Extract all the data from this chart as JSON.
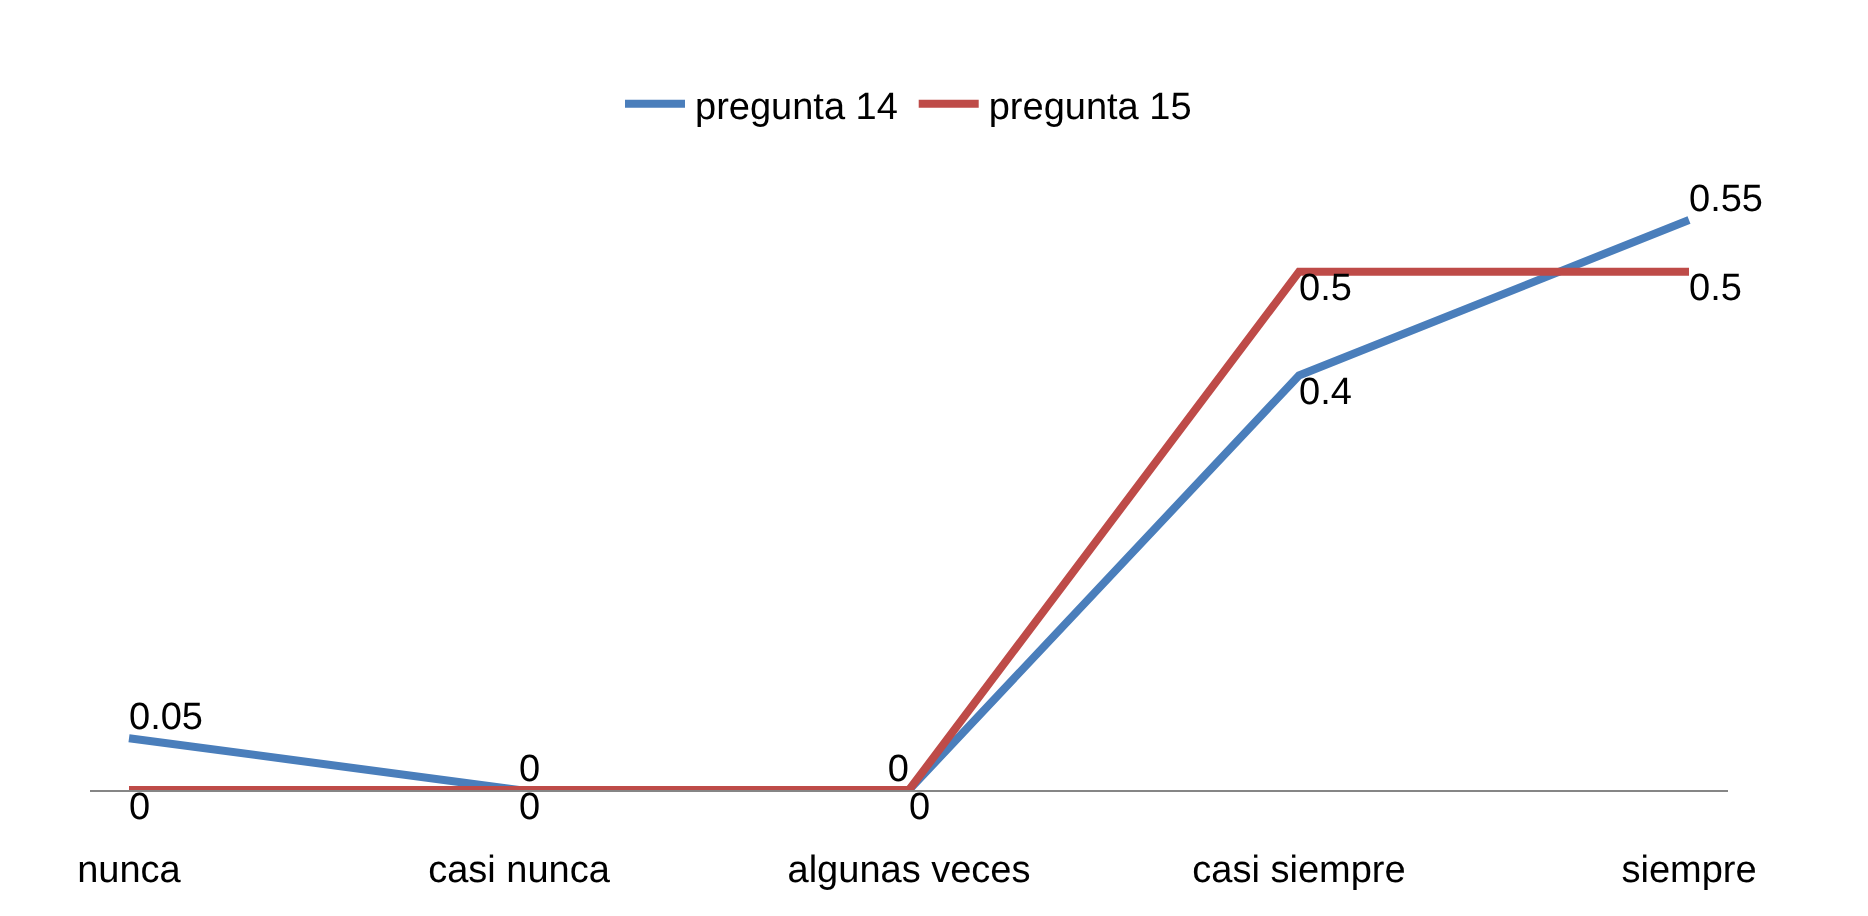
{
  "chart_data": {
    "type": "line",
    "categories": [
      "nunca",
      "casi nunca",
      "algunas veces",
      "casi siempre",
      "siempre"
    ],
    "series": [
      {
        "name": "pregunta 14",
        "color": "#4a7ebb",
        "values": [
          0.05,
          0,
          0,
          0.4,
          0.55
        ]
      },
      {
        "name": "pregunta 15",
        "color": "#be4b48",
        "values": [
          0,
          0,
          0,
          0.5,
          0.5
        ]
      }
    ],
    "data_labels": true,
    "legend": "top",
    "marker": "none",
    "line_style": "solid",
    "tick_labels": "x"
  }
}
